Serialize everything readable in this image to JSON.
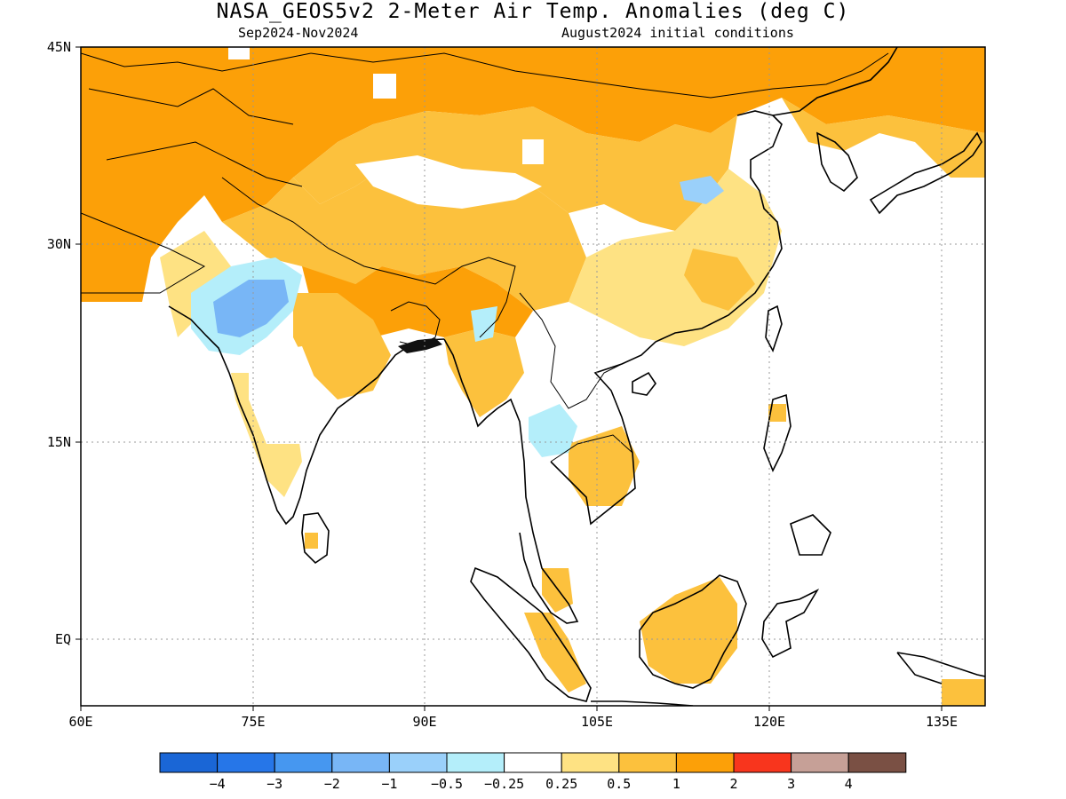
{
  "title": "NASA_GEOS5v2 2-Meter Air Temp. Anomalies (deg C)",
  "subtitle_left": "Sep2024-Nov2024",
  "subtitle_right": "August2024 initial conditions",
  "lat_labels": [
    "45N",
    "30N",
    "15N",
    "EQ"
  ],
  "lon_labels": [
    "60E",
    "75E",
    "90E",
    "105E",
    "120E",
    "135E"
  ],
  "colorbar": {
    "colors": [
      "#1a66d6",
      "#2676e8",
      "#4697f0",
      "#78b6f6",
      "#9ad0fa",
      "#b4eefa",
      "#ffffff",
      "#fee283",
      "#fcc13d",
      "#fca008",
      "#f8351d",
      "#c6a097",
      "#7a5044"
    ],
    "labels": [
      "-4",
      "-3",
      "-2",
      "-1",
      "-0.5",
      "-0.25",
      "0.25",
      "0.5",
      "1",
      "2",
      "3",
      "4"
    ]
  },
  "regions": [
    {
      "name": "central-asia-warm",
      "category": "1"
    },
    {
      "name": "mongolia-warm",
      "category": "1"
    },
    {
      "name": "tibet-mixed",
      "category": "0.5"
    },
    {
      "name": "central-india-cool",
      "category": "-1"
    },
    {
      "name": "china-mild",
      "category": "0.5"
    },
    {
      "name": "indochina-cool",
      "category": "-0.25"
    },
    {
      "name": "borneo-warm",
      "category": "0.5"
    },
    {
      "name": "sumatra-warm",
      "category": "0.5"
    }
  ]
}
